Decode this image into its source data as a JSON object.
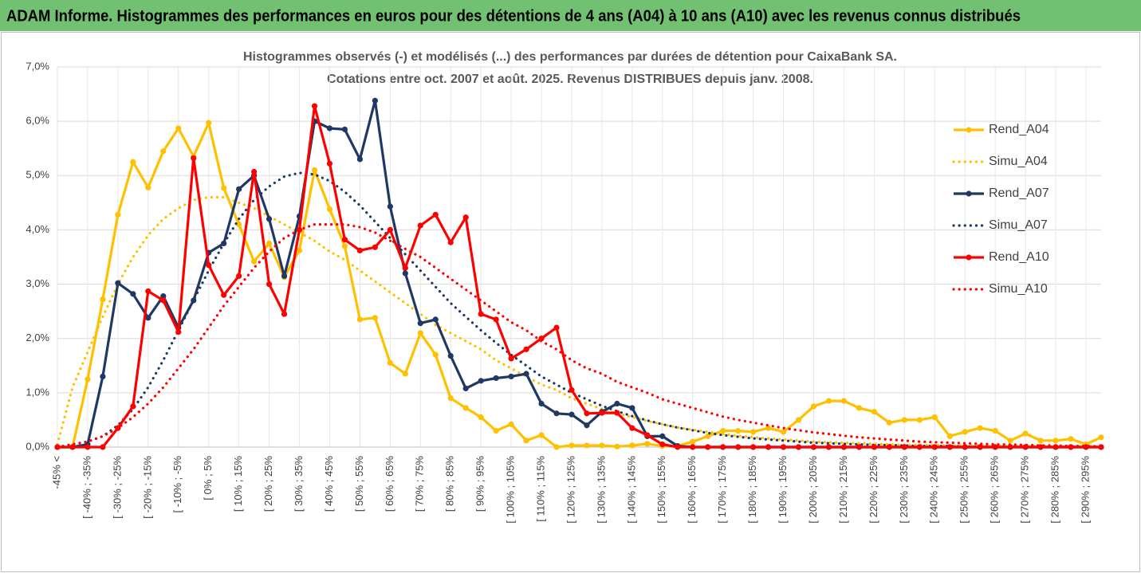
{
  "header": {
    "title": "ADAM Informe. Histogrammes des performances en euros pour des détentions de 4 ans (A04) à 10 ans (A10) avec les revenus connus distribués"
  },
  "chart_data": {
    "type": "line",
    "title": "Histogrammes observés (-) et modélisés (...) des performances par durées de détention pour CaixaBank SA.",
    "subtitle": "Cotations entre oct. 2007 et août. 2025. Revenus DISTRIBUES depuis janv. 2008.",
    "categories": [
      "-45% <",
      null,
      "[ -40% ; -35%",
      null,
      "[ -30% ; -25%",
      null,
      "[ -20% ; -15%",
      null,
      "[ -10% ; -5%",
      null,
      "[ 0% ; 5%",
      null,
      "[ 10% ; 15%",
      null,
      "[ 20% ; 25%",
      null,
      "[ 30% ; 35%",
      null,
      "[ 40% ; 45%",
      null,
      "[ 50% ; 55%",
      null,
      "[ 60% ; 65%",
      null,
      "[ 70% ; 75%",
      null,
      "[ 80% ; 85%",
      null,
      "[ 90% ; 95%",
      null,
      "[ 100% ; 105%",
      null,
      "[ 110% ; 115%",
      null,
      "[ 120% ; 125%",
      null,
      "[ 130% ; 135%",
      null,
      "[ 140% ; 145%",
      null,
      "[ 150% ; 155%",
      null,
      "[ 160% ; 165%",
      null,
      "[ 170% ; 175%",
      null,
      "[ 180% ; 185%",
      null,
      "[ 190% ; 195%",
      null,
      "[ 200% ; 205%",
      null,
      "[ 210% ; 215%",
      null,
      "[ 220% ; 225%",
      null,
      "[ 230% ; 235%",
      null,
      "[ 240% ; 245%",
      null,
      "[ 250% ; 255%",
      null,
      "[ 260% ; 265%",
      null,
      "[ 270% ; 275%",
      null,
      "[ 280% ; 285%",
      null,
      "[ 290% ; 295%",
      null
    ],
    "ylim": [
      0,
      7
    ],
    "yticks": [
      {
        "value": 0,
        "label": "0,0%"
      },
      {
        "value": 1,
        "label": "1,0%"
      },
      {
        "value": 2,
        "label": "2,0%"
      },
      {
        "value": 3,
        "label": "3,0%"
      },
      {
        "value": 4,
        "label": "4,0%"
      },
      {
        "value": 5,
        "label": "5,0%"
      },
      {
        "value": 6,
        "label": "6,0%"
      },
      {
        "value": 7,
        "label": "7,0%"
      }
    ],
    "grid": true,
    "legend": "right",
    "series": [
      {
        "name": "Rend_A04",
        "color": "#ffc000",
        "style": "solid",
        "markers": true,
        "values": [
          0,
          0,
          1.25,
          2.72,
          4.28,
          5.25,
          4.78,
          5.45,
          5.87,
          5.35,
          5.97,
          4.77,
          4.1,
          3.42,
          3.75,
          3.13,
          3.62,
          5.1,
          4.38,
          3.7,
          2.35,
          2.38,
          1.55,
          1.35,
          2.1,
          1.7,
          0.9,
          0.72,
          0.55,
          0.3,
          0.42,
          0.12,
          0.22,
          0,
          0.03,
          0.03,
          0.03,
          0.01,
          0.03,
          0.06,
          0.02,
          0.02,
          0.1,
          0.2,
          0.3,
          0.3,
          0.28,
          0.35,
          0.28,
          0.5,
          0.75,
          0.85,
          0.85,
          0.72,
          0.65,
          0.45,
          0.5,
          0.5,
          0.55,
          0.2,
          0.28,
          0.35,
          0.3,
          0.12,
          0.25,
          0.12,
          0.12,
          0.15,
          0.05,
          0.18
        ]
      },
      {
        "name": "Simu_A04",
        "color": "#ffc000",
        "style": "dotted",
        "markers": false,
        "values": [
          0.05,
          1.1,
          1.75,
          2.4,
          3.0,
          3.5,
          3.9,
          4.2,
          4.4,
          4.55,
          4.6,
          4.6,
          4.5,
          4.4,
          4.25,
          4.1,
          3.95,
          3.8,
          3.6,
          3.45,
          3.25,
          3.05,
          2.85,
          2.65,
          2.45,
          2.25,
          2.1,
          1.95,
          1.8,
          1.6,
          1.45,
          1.3,
          1.15,
          1.05,
          0.9,
          0.8,
          0.7,
          0.62,
          0.55,
          0.48,
          0.42,
          0.36,
          0.32,
          0.28,
          0.24,
          0.21,
          0.18,
          0.16,
          0.14,
          0.12,
          0.1,
          0.09,
          0.08,
          0.07,
          0.06,
          0.05,
          0.04,
          0.04,
          0.04,
          0.03,
          0.03,
          0.03,
          0.02,
          0.02,
          0.02,
          0.02,
          0.01,
          0.01,
          0.01,
          0.01
        ]
      },
      {
        "name": "Rend_A07",
        "color": "#1f3864",
        "style": "solid",
        "markers": true,
        "values": [
          0,
          0,
          0.05,
          1.3,
          3.02,
          2.82,
          2.38,
          2.78,
          2.2,
          2.7,
          3.58,
          3.75,
          4.75,
          5.0,
          4.2,
          3.15,
          4.25,
          6.0,
          5.87,
          5.85,
          5.3,
          6.38,
          4.43,
          3.2,
          2.28,
          2.35,
          1.68,
          1.08,
          1.22,
          1.27,
          1.3,
          1.35,
          0.8,
          0.62,
          0.6,
          0.4,
          0.65,
          0.8,
          0.72,
          0.2,
          0.2,
          0.02,
          0,
          0,
          0,
          0,
          0,
          0,
          0,
          0,
          0,
          0,
          0,
          0,
          0,
          0,
          0,
          0,
          0,
          0,
          0,
          0,
          0,
          0,
          0,
          0,
          0,
          0,
          0,
          0
        ]
      },
      {
        "name": "Simu_A07",
        "color": "#1f3864",
        "style": "dotted",
        "markers": false,
        "values": [
          0,
          0.05,
          0.1,
          0.2,
          0.4,
          0.7,
          1.1,
          1.6,
          2.15,
          2.7,
          3.25,
          3.75,
          4.2,
          4.55,
          4.8,
          4.98,
          5.05,
          5.02,
          4.9,
          4.7,
          4.45,
          4.15,
          3.85,
          3.55,
          3.25,
          2.95,
          2.65,
          2.4,
          2.15,
          1.92,
          1.7,
          1.5,
          1.3,
          1.15,
          1.0,
          0.88,
          0.76,
          0.66,
          0.57,
          0.49,
          0.42,
          0.36,
          0.31,
          0.26,
          0.22,
          0.19,
          0.16,
          0.14,
          0.12,
          0.1,
          0.08,
          0.07,
          0.06,
          0.05,
          0.04,
          0.035,
          0.03,
          0.02,
          0.02,
          0.02,
          0.01,
          0.01,
          0.01,
          0.01,
          0.01,
          0,
          0,
          0,
          0,
          0
        ]
      },
      {
        "name": "Rend_A10",
        "color": "#ff0000",
        "style": "solid",
        "markers": true,
        "values": [
          0,
          0,
          0,
          0,
          0.35,
          0.75,
          2.87,
          2.7,
          2.12,
          5.32,
          3.35,
          2.8,
          3.15,
          5.07,
          3.0,
          2.45,
          4.0,
          6.28,
          5.22,
          3.82,
          3.62,
          3.68,
          4.0,
          3.3,
          4.08,
          4.28,
          3.77,
          4.23,
          2.45,
          2.35,
          1.63,
          1.8,
          2.0,
          2.2,
          1.05,
          0.62,
          0.63,
          0.63,
          0.35,
          0.22,
          0.05,
          0,
          0,
          0,
          0,
          0,
          0,
          0,
          0,
          0,
          0,
          0,
          0,
          0,
          0,
          0,
          0,
          0,
          0,
          0,
          0,
          0,
          0,
          0,
          0,
          0,
          0,
          0,
          0,
          0
        ]
      },
      {
        "name": "Simu_A10",
        "color": "#ff0000",
        "style": "dotted",
        "markers": false,
        "values": [
          0,
          0.05,
          0.1,
          0.2,
          0.35,
          0.55,
          0.8,
          1.1,
          1.45,
          1.8,
          2.2,
          2.6,
          2.95,
          3.3,
          3.6,
          3.85,
          4.0,
          4.1,
          4.1,
          4.1,
          4.05,
          3.95,
          3.8,
          3.65,
          3.5,
          3.3,
          3.1,
          2.9,
          2.7,
          2.5,
          2.3,
          2.15,
          1.95,
          1.8,
          1.6,
          1.45,
          1.35,
          1.2,
          1.1,
          1.0,
          0.88,
          0.8,
          0.72,
          0.64,
          0.56,
          0.5,
          0.45,
          0.4,
          0.35,
          0.31,
          0.27,
          0.24,
          0.21,
          0.18,
          0.16,
          0.14,
          0.12,
          0.1,
          0.09,
          0.08,
          0.07,
          0.06,
          0.05,
          0.045,
          0.04,
          0.03,
          0.03,
          0.02,
          0.02,
          0.01
        ]
      }
    ]
  }
}
